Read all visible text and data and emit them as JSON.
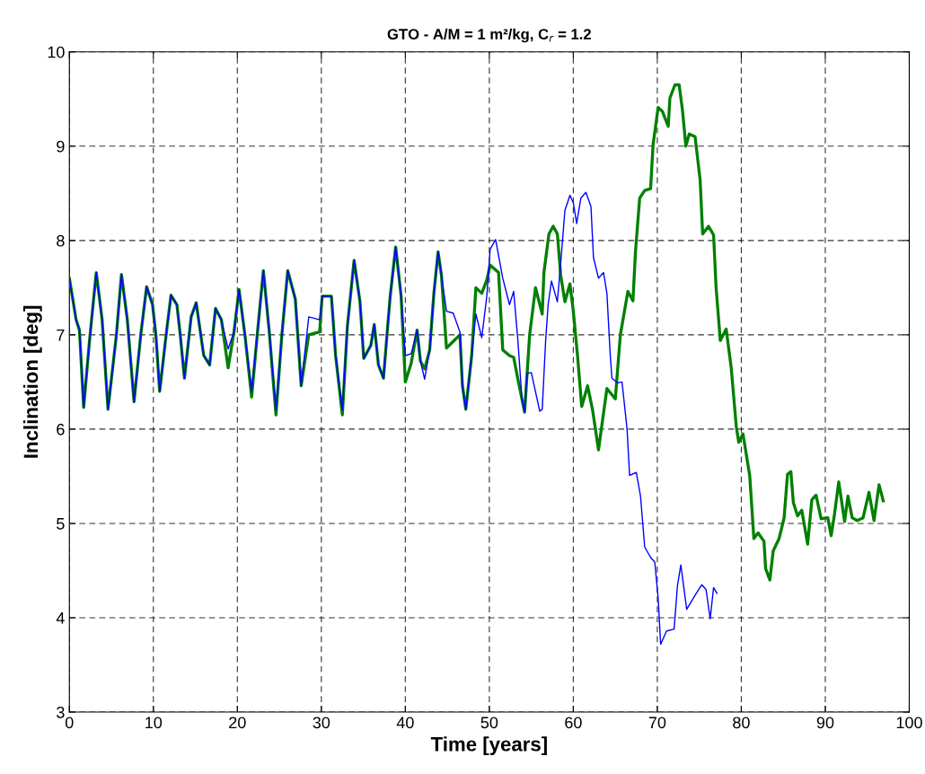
{
  "chart_data": {
    "type": "line",
    "title": "GTO - A/M = 1 m²/kg, C$_{r}$ = 1.2",
    "xlabel": "Time [years]",
    "ylabel": "Inclination [deg]",
    "xlim": [
      0,
      100
    ],
    "xticks": [
      0,
      10,
      20,
      30,
      40,
      50,
      60,
      70,
      80,
      90,
      100
    ],
    "ylim": [
      3,
      10
    ],
    "yticks": [
      3,
      4,
      5,
      6,
      7,
      8,
      9,
      10
    ],
    "grid": true,
    "line_style": "solid",
    "marker": "none",
    "series": [
      {
        "color": "#0000ff",
        "x": [
          0,
          0.8,
          1.2,
          1.7,
          2.4,
          3.2,
          3.9,
          4.6,
          5.6,
          6.2,
          6.9,
          7.7,
          8.5,
          9.2,
          9.9,
          10.3,
          10.75,
          11.6,
          12.1,
          12.8,
          13.2,
          13.7,
          14.5,
          15.1,
          16.0,
          16.7,
          17.4,
          18.1,
          18.9,
          19.6,
          20.2,
          20.9,
          21.7,
          22.4,
          23.1,
          23.8,
          24.6,
          25.3,
          26.0,
          26.9,
          27.6,
          28.5,
          29.8,
          30.1,
          31.2,
          31.7,
          32.5,
          33.1,
          33.9,
          34.6,
          35.05,
          35.9,
          36.3,
          36.8,
          37.4,
          37.9,
          38.2,
          38.85,
          39.5,
          40.0,
          40.7,
          41.4,
          41.8,
          42.3,
          42.9,
          43.4,
          43.9,
          44.3,
          44.9,
          45.7,
          46.5,
          46.8,
          47.2,
          47.9,
          48.4,
          49.1,
          49.7,
          50.1,
          50.75,
          51.6,
          52.4,
          52.9,
          53.4,
          53.9,
          54.2,
          54.5,
          55.0,
          56.0,
          56.3,
          56.7,
          57.0,
          57.4,
          58.1,
          58.5,
          59.0,
          59.6,
          60.0,
          60.4,
          60.9,
          61.5,
          62.1,
          62.4,
          63.0,
          63.6,
          64.0,
          64.4,
          64.6,
          65.3,
          65.8,
          66.4,
          66.7,
          67.5,
          68.0,
          68.5,
          69.2,
          69.7,
          70.1,
          70.4,
          71.1,
          72.0,
          72.4,
          72.8,
          73.5,
          74.5,
          75.3,
          75.8,
          76.3,
          76.7,
          77.1
        ],
        "values": [
          7.6,
          7.16,
          7.05,
          6.23,
          6.94,
          7.66,
          7.16,
          6.21,
          7.0,
          7.64,
          7.16,
          6.29,
          7.0,
          7.51,
          7.32,
          7.0,
          6.4,
          7.06,
          7.42,
          7.32,
          7.0,
          6.54,
          7.19,
          7.34,
          6.78,
          6.68,
          7.28,
          7.16,
          6.85,
          7.03,
          7.48,
          7.0,
          6.4,
          7.03,
          7.68,
          7.03,
          6.2,
          7.0,
          7.68,
          7.38,
          6.46,
          7.19,
          7.16,
          7.41,
          7.41,
          6.78,
          6.2,
          7.09,
          7.79,
          7.35,
          6.75,
          6.89,
          7.11,
          6.68,
          6.54,
          7.09,
          7.41,
          7.93,
          7.41,
          6.78,
          6.8,
          7.05,
          6.72,
          6.53,
          6.84,
          7.44,
          7.88,
          7.63,
          7.25,
          7.23,
          7.03,
          6.46,
          6.21,
          6.78,
          7.22,
          6.97,
          7.41,
          7.91,
          8.01,
          7.6,
          7.32,
          7.46,
          6.94,
          6.3,
          6.18,
          6.59,
          6.6,
          6.19,
          6.21,
          6.93,
          7.32,
          7.57,
          7.35,
          7.76,
          8.32,
          8.48,
          8.4,
          8.18,
          8.45,
          8.51,
          8.36,
          7.82,
          7.6,
          7.66,
          7.44,
          6.78,
          6.54,
          6.49,
          6.5,
          6.0,
          5.51,
          5.54,
          5.29,
          4.75,
          4.64,
          4.59,
          4.21,
          3.72,
          3.86,
          3.88,
          4.34,
          4.56,
          4.09,
          4.24,
          4.35,
          4.3,
          3.99,
          4.32,
          4.26
        ]
      },
      {
        "color": "#008000",
        "x": [
          0,
          0.8,
          1.2,
          1.7,
          2.4,
          3.2,
          3.9,
          4.6,
          5.6,
          6.2,
          6.9,
          7.7,
          8.5,
          9.2,
          9.9,
          10.3,
          10.75,
          11.6,
          12.1,
          12.8,
          13.2,
          13.7,
          14.5,
          15.1,
          16.0,
          16.7,
          17.4,
          18.1,
          18.9,
          19.6,
          20.2,
          20.9,
          21.7,
          22.4,
          23.1,
          23.8,
          24.6,
          25.3,
          26.0,
          26.9,
          27.6,
          28.5,
          29.8,
          30.1,
          31.2,
          31.7,
          32.5,
          33.1,
          33.9,
          34.6,
          35.05,
          35.9,
          36.3,
          36.8,
          37.4,
          37.9,
          38.2,
          38.85,
          39.5,
          40.0,
          40.7,
          41.4,
          41.8,
          42.3,
          42.9,
          43.4,
          43.9,
          44.3,
          44.9,
          45.7,
          46.5,
          46.8,
          47.2,
          47.9,
          48.4,
          49.1,
          49.7,
          50.1,
          51.1,
          51.6,
          52.4,
          52.9,
          53.4,
          54.2,
          54.8,
          55.5,
          56.3,
          56.5,
          57.1,
          57.6,
          58.1,
          58.5,
          59.0,
          59.6,
          60.0,
          60.5,
          61.0,
          61.7,
          62.3,
          63.0,
          64.0,
          65.0,
          65.6,
          66.5,
          67.1,
          67.4,
          67.9,
          68.5,
          69.2,
          69.5,
          70.1,
          70.6,
          71.3,
          71.5,
          72.1,
          72.6,
          73.0,
          73.4,
          73.8,
          74.5,
          75.1,
          75.4,
          76.1,
          76.7,
          77.0,
          77.5,
          78.2,
          78.8,
          79.4,
          79.7,
          80.2,
          81.0,
          81.5,
          82.0,
          82.7,
          82.9,
          83.4,
          83.8,
          84.5,
          85.1,
          85.5,
          85.9,
          86.2,
          86.7,
          87.2,
          87.9,
          88.4,
          88.9,
          89.5,
          90.3,
          90.7,
          91.1,
          91.6,
          92.3,
          92.7,
          93.2,
          93.8,
          94.5,
          95.2,
          95.8,
          96.4,
          96.9
        ],
        "values": [
          7.6,
          7.16,
          7.05,
          6.23,
          6.94,
          7.66,
          7.16,
          6.21,
          7.0,
          7.64,
          7.16,
          6.29,
          7.0,
          7.51,
          7.32,
          7.0,
          6.4,
          7.06,
          7.42,
          7.32,
          7.0,
          6.54,
          7.19,
          7.34,
          6.78,
          6.68,
          7.28,
          7.16,
          6.65,
          7.03,
          7.48,
          7.0,
          6.34,
          7.03,
          7.68,
          7.03,
          6.15,
          7.0,
          7.68,
          7.38,
          6.46,
          7.0,
          7.03,
          7.41,
          7.41,
          6.78,
          6.15,
          7.09,
          7.79,
          7.35,
          6.75,
          6.89,
          7.11,
          6.68,
          6.54,
          7.09,
          7.41,
          7.93,
          7.41,
          6.5,
          6.7,
          7.05,
          6.72,
          6.64,
          6.84,
          7.44,
          7.88,
          7.63,
          6.86,
          6.93,
          7.0,
          6.46,
          6.21,
          6.78,
          7.5,
          7.44,
          7.58,
          7.74,
          7.66,
          6.84,
          6.78,
          6.76,
          6.53,
          6.18,
          7.0,
          7.5,
          7.22,
          7.66,
          8.07,
          8.15,
          8.07,
          7.63,
          7.35,
          7.54,
          7.25,
          6.78,
          6.24,
          6.46,
          6.2,
          5.78,
          6.43,
          6.32,
          7.0,
          7.46,
          7.36,
          7.88,
          8.45,
          8.53,
          8.55,
          9.02,
          9.41,
          9.37,
          9.21,
          9.51,
          9.65,
          9.65,
          9.38,
          9.0,
          9.13,
          9.1,
          8.64,
          8.07,
          8.15,
          8.06,
          7.5,
          6.94,
          7.06,
          6.65,
          6.03,
          5.86,
          5.95,
          5.51,
          4.84,
          4.9,
          4.81,
          4.52,
          4.4,
          4.71,
          4.84,
          5.06,
          5.52,
          5.55,
          5.22,
          5.08,
          5.14,
          4.78,
          5.25,
          5.3,
          5.05,
          5.06,
          4.87,
          5.1,
          5.44,
          5.02,
          5.29,
          5.06,
          5.03,
          5.06,
          5.33,
          5.03,
          5.41,
          5.24
        ]
      }
    ]
  }
}
